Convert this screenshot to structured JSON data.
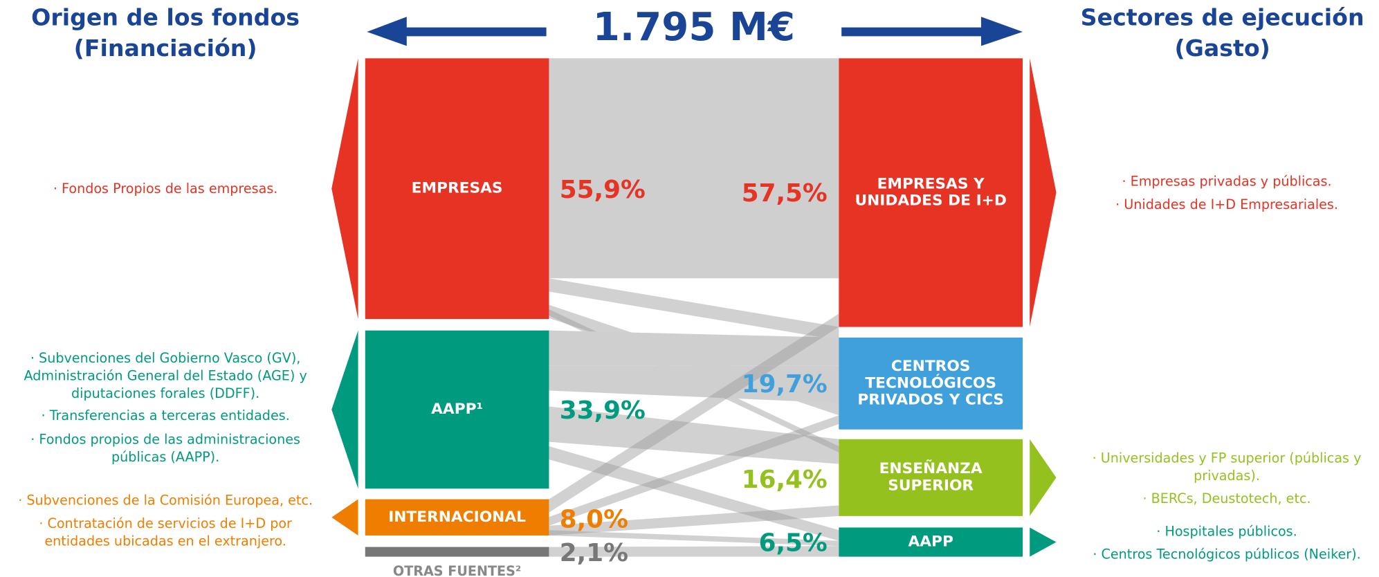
{
  "header": {
    "left_title": [
      "Origen de los fondos",
      "(Financiación)"
    ],
    "total": "1.795 M€",
    "right_title": [
      "Sectores de ejecución",
      "(Gasto)"
    ]
  },
  "sources": [
    {
      "label": [
        "EMPRESAS"
      ],
      "percent": "55,9%",
      "notes": [
        [
          "· Fondos Propios de las empresas."
        ]
      ]
    },
    {
      "label": [
        "AAPP¹"
      ],
      "percent": "33,9%",
      "notes": [
        [
          "· Subvenciones del Gobierno Vasco (GV),",
          "Administración General del Estado (AGE) y",
          "diputaciones forales (DDFF)."
        ],
        [
          "· Transferencias a terceras entidades."
        ],
        [
          "· Fondos propios de las administraciones",
          "públicas (AAPP)."
        ]
      ]
    },
    {
      "label": [
        "INTERNACIONAL"
      ],
      "percent": "8,0%",
      "notes": [
        [
          "· Subvenciones de la Comisión Europea, etc."
        ],
        [
          "· Contratación de servicios de I+D por",
          "entidades ubicadas en el extranjero."
        ]
      ]
    },
    {
      "label": [
        "OTRAS FUENTES²"
      ],
      "percent": "2,1%",
      "notes": []
    }
  ],
  "sectors": [
    {
      "label": [
        "EMPRESAS Y",
        "UNIDADES DE I+D"
      ],
      "percent": "57,5%",
      "notes": [
        [
          "· Empresas privadas y públicas."
        ],
        [
          "· Unidades de I+D Empresariales."
        ]
      ]
    },
    {
      "label": [
        "CENTROS",
        "TECNOLÓGICOS",
        "PRIVADOS Y CICS"
      ],
      "percent": "19,7%",
      "notes": []
    },
    {
      "label": [
        "ENSEÑANZA",
        "SUPERIOR"
      ],
      "percent": "16,4%",
      "notes": [
        [
          "· Universidades y FP superior (públicas y",
          "privadas)."
        ],
        [
          "· BERCs, Deustotech, etc."
        ]
      ]
    },
    {
      "label": [
        "AAPP"
      ],
      "percent": "6,5%",
      "notes": [
        [
          "· Hospitales públicos."
        ],
        [
          "· Centros Tecnológicos públicos (Neiker)."
        ]
      ]
    }
  ]
}
